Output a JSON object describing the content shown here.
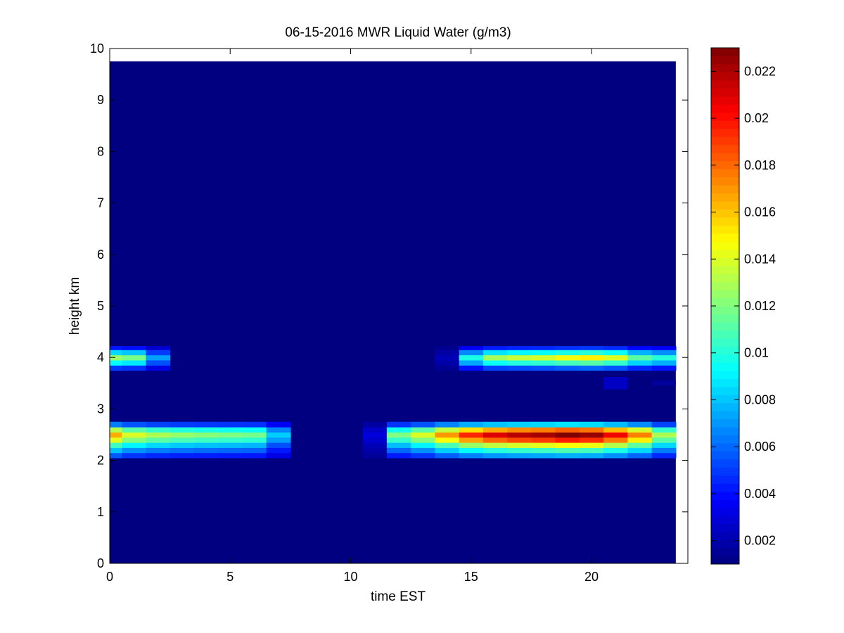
{
  "chart_data": {
    "type": "heatmap",
    "title": "06-15-2016 MWR Liquid Water (g/m3)",
    "xlabel": "time EST",
    "ylabel": "height km",
    "xlim": [
      0,
      24
    ],
    "ylim": [
      0,
      10
    ],
    "xticks": [
      0,
      5,
      10,
      15,
      20
    ],
    "yticks": [
      0,
      1,
      2,
      3,
      4,
      5,
      6,
      7,
      8,
      9,
      10
    ],
    "colorbar": {
      "colormap": "jet",
      "range": [
        0.001,
        0.023
      ],
      "ticks": [
        0.002,
        0.004,
        0.006,
        0.008,
        0.01,
        0.012,
        0.014,
        0.016,
        0.018,
        0.02,
        0.022
      ],
      "tick_labels": [
        "0.002",
        "0.004",
        "0.006",
        "0.008",
        "0.01",
        "0.012",
        "0.014",
        "0.016",
        "0.018",
        "0.02",
        "0.022"
      ]
    },
    "grid": false,
    "background_value": 0.001,
    "data_extent": {
      "x": [
        0,
        23.5
      ],
      "y": [
        0,
        9.75
      ]
    },
    "cell_width_hours": 1,
    "upper_layer": {
      "rows": [
        {
          "y0": 3.75,
          "y1": 3.85,
          "weight": 0.35
        },
        {
          "y0": 3.85,
          "y1": 3.95,
          "weight": 0.72
        },
        {
          "y0": 3.95,
          "y1": 4.05,
          "weight": 1.0
        },
        {
          "y0": 4.05,
          "y1": 4.15,
          "weight": 0.65
        },
        {
          "y0": 4.15,
          "y1": 4.22,
          "weight": 0.28
        }
      ],
      "peaks": [
        {
          "t0": 0,
          "t1": 0.5,
          "v": 0.0125
        },
        {
          "t0": 0.5,
          "t1": 1.5,
          "v": 0.0118
        },
        {
          "t0": 1.5,
          "t1": 2.5,
          "v": 0.0072
        },
        {
          "t0": 13.5,
          "t1": 14.5,
          "v": 0.0022
        },
        {
          "t0": 14.5,
          "t1": 15.5,
          "v": 0.0098
        },
        {
          "t0": 15.5,
          "t1": 16.5,
          "v": 0.0128
        },
        {
          "t0": 16.5,
          "t1": 17.5,
          "v": 0.0135
        },
        {
          "t0": 17.5,
          "t1": 18.5,
          "v": 0.0138
        },
        {
          "t0": 18.5,
          "t1": 19.5,
          "v": 0.0145
        },
        {
          "t0": 19.5,
          "t1": 20.5,
          "v": 0.015
        },
        {
          "t0": 20.5,
          "t1": 21.5,
          "v": 0.014
        },
        {
          "t0": 21.5,
          "t1": 22.5,
          "v": 0.0112
        },
        {
          "t0": 22.5,
          "t1": 23.5,
          "v": 0.01
        }
      ]
    },
    "lower_layer": {
      "rows": [
        {
          "y0": 2.05,
          "y1": 2.15,
          "weight": 0.3
        },
        {
          "y0": 2.15,
          "y1": 2.25,
          "weight": 0.45
        },
        {
          "y0": 2.25,
          "y1": 2.35,
          "weight": 0.62
        },
        {
          "y0": 2.35,
          "y1": 2.45,
          "weight": 0.85
        },
        {
          "y0": 2.45,
          "y1": 2.55,
          "weight": 1.0
        },
        {
          "y0": 2.55,
          "y1": 2.65,
          "weight": 0.78
        },
        {
          "y0": 2.65,
          "y1": 2.75,
          "weight": 0.35
        }
      ],
      "peaks": [
        {
          "t0": 0,
          "t1": 0.5,
          "v": 0.0165
        },
        {
          "t0": 0.5,
          "t1": 1.5,
          "v": 0.014
        },
        {
          "t0": 1.5,
          "t1": 2.5,
          "v": 0.013
        },
        {
          "t0": 2.5,
          "t1": 3.5,
          "v": 0.0125
        },
        {
          "t0": 3.5,
          "t1": 4.5,
          "v": 0.0122
        },
        {
          "t0": 4.5,
          "t1": 5.5,
          "v": 0.012
        },
        {
          "t0": 5.5,
          "t1": 6.5,
          "v": 0.0118
        },
        {
          "t0": 6.5,
          "t1": 7.5,
          "v": 0.0082
        },
        {
          "t0": 10.5,
          "t1": 11.5,
          "v": 0.003
        },
        {
          "t0": 11.5,
          "t1": 12.5,
          "v": 0.012
        },
        {
          "t0": 12.5,
          "t1": 13.5,
          "v": 0.014
        },
        {
          "t0": 13.5,
          "t1": 14.5,
          "v": 0.017
        },
        {
          "t0": 14.5,
          "t1": 15.5,
          "v": 0.0195
        },
        {
          "t0": 15.5,
          "t1": 16.5,
          "v": 0.021
        },
        {
          "t0": 16.5,
          "t1": 17.5,
          "v": 0.0218
        },
        {
          "t0": 17.5,
          "t1": 18.5,
          "v": 0.0222
        },
        {
          "t0": 18.5,
          "t1": 19.5,
          "v": 0.023
        },
        {
          "t0": 19.5,
          "t1": 20.5,
          "v": 0.0225
        },
        {
          "t0": 20.5,
          "t1": 21.5,
          "v": 0.0205
        },
        {
          "t0": 21.5,
          "t1": 22.5,
          "v": 0.0175
        },
        {
          "t0": 22.5,
          "t1": 23.5,
          "v": 0.013
        }
      ]
    },
    "patches": [
      {
        "t0": 20.5,
        "t1": 21.5,
        "y0": 3.38,
        "y1": 3.62,
        "v": 0.0025
      },
      {
        "t0": 22.5,
        "t1": 23.5,
        "y0": 3.45,
        "y1": 3.55,
        "v": 0.0016
      }
    ]
  }
}
